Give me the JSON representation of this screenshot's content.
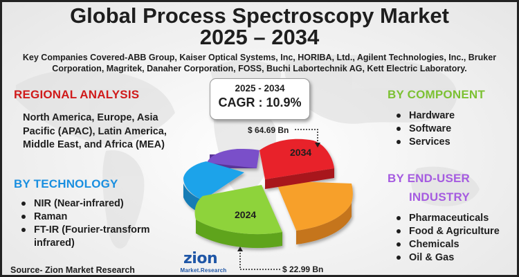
{
  "title_line1": "Global Process Spectroscopy Market",
  "title_line2": "2025 – 2034",
  "companies": "Key Companies Covered-ABB Group, Kaiser Optical Systems, Inc, HORIBA, Ltd., Agilent Technologies, Inc., Bruker Corporation, Magritek, Danaher Corporation, FOSS, Buchi Labortechnik AG, Kett Electric Laboratory.",
  "regional": {
    "heading": "REGIONAL ANALYSIS",
    "text": "North America, Europe, Asia Pacific (APAC), Latin America, Middle East, and Africa (MEA)",
    "color": "#d01a1a"
  },
  "technology": {
    "heading": "BY TECHNOLOGY",
    "items": [
      "NIR (Near-infrared)",
      "Raman",
      "FT-IR (Fourier-transform infrared)"
    ],
    "color": "#1a8fe0"
  },
  "component": {
    "heading": "BY COMPONENT",
    "items": [
      "Hardware",
      "Software",
      "Services"
    ],
    "color": "#7cc133"
  },
  "end_user": {
    "heading_line1": "BY END-USER",
    "heading_line2": "INDUSTRY",
    "items": [
      "Pharmaceuticals",
      "Food & Agriculture",
      "Chemicals",
      "Oil & Gas"
    ],
    "color": "#a55be0"
  },
  "cagr": {
    "period": "2025 - 2034",
    "value": "CAGR : 10.9%"
  },
  "pie": {
    "label_2034": "2034",
    "label_2024": "2024",
    "value_2034": "$ 64.69 Bn",
    "value_2024": "$ 22.99 Bn",
    "colors": {
      "red": "#e8202a",
      "orange": "#f7a02c",
      "green": "#8ed33a",
      "blue": "#1fa3ea",
      "purple": "#7a4fc9"
    }
  },
  "source": "Source- Zion Market Research",
  "logo": {
    "name": "zion",
    "tagline": "Market.Research"
  }
}
